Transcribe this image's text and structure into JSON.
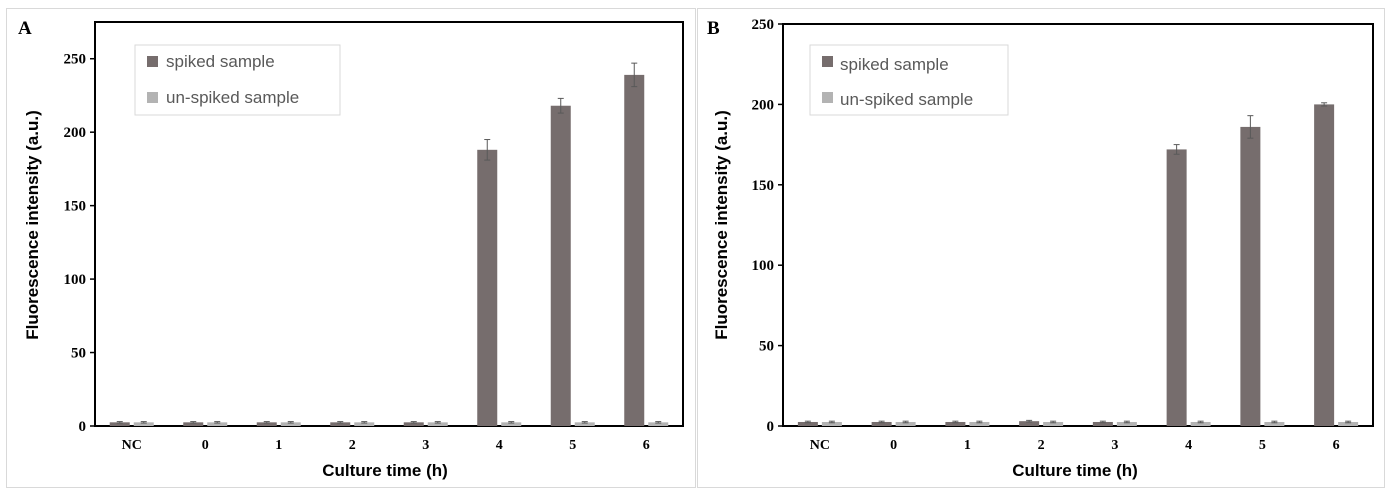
{
  "colors": {
    "spiked": "#766d6d",
    "unspiked": "#b3b3b3",
    "axis": "#000000",
    "frame": "#d9d9d9"
  },
  "chart_data": [
    {
      "type": "bar",
      "panel_label": "A",
      "categories": [
        "NC",
        "0",
        "1",
        "2",
        "3",
        "4",
        "5",
        "6"
      ],
      "xlabel": "Culture time (h)",
      "ylabel": "Fluorescence intensity (a.u.)",
      "ylim": [
        0,
        275
      ],
      "yticks": [
        0,
        50,
        100,
        150,
        200,
        250
      ],
      "grid": false,
      "legend_position": "top-left",
      "series": [
        {
          "name": "spiked sample",
          "values": [
            2.5,
            2.5,
            2.5,
            2.5,
            2.5,
            188,
            218,
            239
          ],
          "errors": [
            0.5,
            0.5,
            0.5,
            0.5,
            0.5,
            7,
            5,
            8
          ]
        },
        {
          "name": "un-spiked sample",
          "values": [
            2.5,
            2.5,
            2.5,
            2.5,
            2.5,
            2.5,
            2.5,
            2.5
          ],
          "errors": [
            0.5,
            0.5,
            0.5,
            0.5,
            0.5,
            0.5,
            0.5,
            0.5
          ]
        }
      ]
    },
    {
      "type": "bar",
      "panel_label": "B",
      "categories": [
        "NC",
        "0",
        "1",
        "2",
        "3",
        "4",
        "5",
        "6"
      ],
      "xlabel": "Culture time (h)",
      "ylabel": "Fluorescence intensity (a.u.)",
      "ylim": [
        0,
        250
      ],
      "yticks": [
        0,
        50,
        100,
        150,
        200,
        250
      ],
      "grid": false,
      "legend_position": "top-left",
      "series": [
        {
          "name": "spiked sample",
          "values": [
            2.5,
            2.5,
            2.5,
            3,
            2.5,
            172,
            186,
            200
          ],
          "errors": [
            0.5,
            0.5,
            0.5,
            0.5,
            0.5,
            3,
            7,
            1
          ]
        },
        {
          "name": "un-spiked sample",
          "values": [
            2.5,
            2.5,
            2.5,
            2.5,
            2.5,
            2.5,
            2.5,
            2.5
          ],
          "errors": [
            0.5,
            0.5,
            0.5,
            0.5,
            0.5,
            0.5,
            0.5,
            0.5
          ]
        }
      ]
    }
  ]
}
